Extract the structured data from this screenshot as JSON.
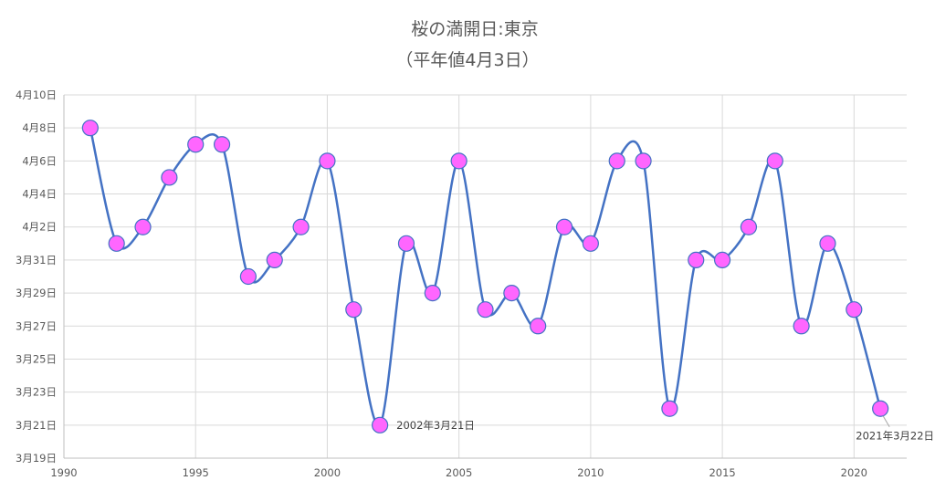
{
  "chart_data": {
    "type": "line",
    "title": "桜の満開日:東京",
    "subtitle": "（平年値4月3日）",
    "xlabel": "",
    "ylabel": "",
    "x": [
      1991,
      1992,
      1993,
      1994,
      1995,
      1996,
      1997,
      1998,
      1999,
      2000,
      2001,
      2002,
      2003,
      2004,
      2005,
      2006,
      2007,
      2008,
      2009,
      2010,
      2011,
      2012,
      2013,
      2014,
      2015,
      2016,
      2017,
      2018,
      2019,
      2020,
      2021
    ],
    "series": [
      {
        "values": [
          "4月8日",
          "4月1日",
          "4月2日",
          "4月5日",
          "4月7日",
          "4月7日",
          "3月30日",
          "3月31日",
          "4月2日",
          "4月6日",
          "3月28日",
          "3月21日",
          "4月1日",
          "3月29日",
          "4月6日",
          "3月28日",
          "3月29日",
          "3月27日",
          "4月2日",
          "4月1日",
          "4月6日",
          "4月6日",
          "3月22日",
          "3月31日",
          "3月31日",
          "4月2日",
          "4月6日",
          "3月27日",
          "4月1日",
          "3月28日",
          "3月22日"
        ]
      }
    ],
    "xlim": [
      1990,
      2022
    ],
    "ylim": [
      "3月19日",
      "4月10日"
    ],
    "x_ticks": [
      "1990",
      "1995",
      "2000",
      "2005",
      "2010",
      "2015",
      "2020"
    ],
    "y_ticks": [
      "3月19日",
      "3月21日",
      "3月23日",
      "3月25日",
      "3月27日",
      "3月29日",
      "3月31日",
      "4月2日",
      "4月4日",
      "4月6日",
      "4月8日",
      "4月10日"
    ],
    "grid": true,
    "legend": "none",
    "annotations": [
      {
        "x": 2002,
        "y": "3月21日",
        "text": "2002年3月21日"
      },
      {
        "x": 2021,
        "y": "3月22日",
        "text": "2021年3月22日"
      }
    ],
    "colors": {
      "line": "#4472c4",
      "marker_fill": "#ff66ff",
      "marker_edge": "#4472c4",
      "grid": "#d9d9d9",
      "axis": "#bfbfbf",
      "text": "#595959"
    }
  }
}
